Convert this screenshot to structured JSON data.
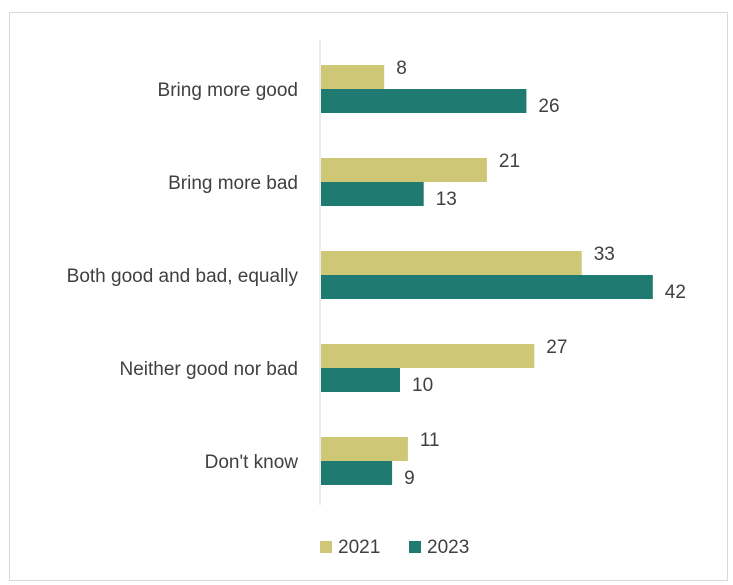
{
  "chart_data": {
    "type": "bar",
    "orientation": "horizontal",
    "categories": [
      "Bring more good",
      "Bring more bad",
      "Both good and bad, equally",
      "Neither good nor bad",
      "Don't know"
    ],
    "series": [
      {
        "name": "2021",
        "color": "#cdc776",
        "values": [
          8,
          21,
          33,
          27,
          11
        ]
      },
      {
        "name": "2023",
        "color": "#1f7a72",
        "values": [
          26,
          13,
          42,
          10,
          9
        ]
      }
    ],
    "legend_position": "bottom",
    "grid": false,
    "xlim": [
      0,
      50
    ]
  }
}
